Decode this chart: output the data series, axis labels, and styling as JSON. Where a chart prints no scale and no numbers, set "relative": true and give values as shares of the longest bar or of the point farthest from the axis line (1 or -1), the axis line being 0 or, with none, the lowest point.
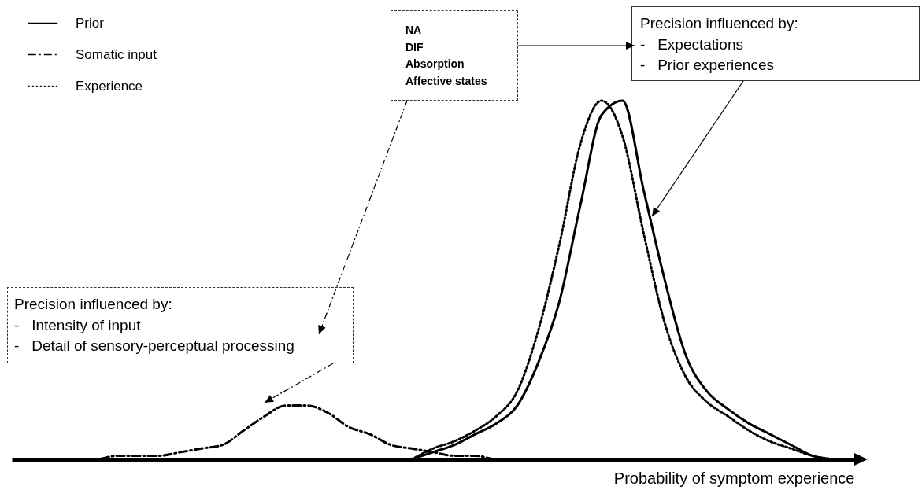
{
  "chart_data": {
    "type": "line",
    "relative": true,
    "xlabel": "Probability of symptom experience",
    "legend": "top left",
    "categories": [
      null,
      null,
      null,
      null,
      null,
      null,
      null,
      null,
      null,
      null,
      null,
      null,
      null,
      null,
      null,
      null,
      null,
      null,
      null,
      null,
      null,
      null,
      null,
      null,
      null,
      null,
      null,
      null,
      null,
      null,
      null,
      null,
      null,
      null,
      null,
      null,
      null,
      null,
      null,
      null,
      null
    ],
    "series": [
      {
        "name": "Prior",
        "color": "#000000",
        "line_style": "solid",
        "values": [
          null,
          null,
          null,
          null,
          null,
          null,
          null,
          null,
          null,
          null,
          null,
          null,
          null,
          null,
          null,
          null,
          null,
          null,
          null,
          0,
          0.02,
          0.04,
          0.07,
          0.1,
          0.15,
          0.27,
          0.44,
          0.71,
          0.96,
          1,
          0.75,
          0.5,
          0.29,
          0.19,
          0.14,
          0.1,
          0.07,
          0.04,
          0.01,
          0,
          null
        ]
      },
      {
        "name": "Somatic input",
        "color": "#000000",
        "line_style": "dashed",
        "values": [
          null,
          null,
          0,
          0,
          0,
          0.01,
          0.01,
          0.01,
          0.02,
          0.03,
          0.04,
          0.08,
          0.12,
          0.15,
          0.15,
          0.13,
          0.09,
          0.07,
          0.04,
          0.03,
          0.02,
          0.01,
          0.01,
          0,
          0,
          null,
          null,
          null,
          null,
          null,
          null,
          null,
          null,
          null,
          null,
          null,
          null,
          null,
          null,
          null,
          null
        ]
      },
      {
        "name": "Experience",
        "color": "#000000",
        "line_style": "dotted",
        "values": [
          null,
          null,
          null,
          null,
          null,
          null,
          null,
          null,
          null,
          null,
          null,
          null,
          null,
          null,
          null,
          null,
          null,
          null,
          null,
          0,
          0.03,
          0.05,
          0.08,
          0.12,
          0.19,
          0.36,
          0.6,
          0.88,
          1,
          0.9,
          0.63,
          0.38,
          0.23,
          0.16,
          0.12,
          0.08,
          0.05,
          0.03,
          0.01,
          0,
          null
        ]
      }
    ],
    "annotations": [
      "NA\nDIF\nAbsorption\nAffective states",
      "Precision influenced by:\n-   Expectations\n-   Prior experiences",
      "Precision influenced by:\n-   Intensity of input\n-   Detail of sensory-perceptual processing"
    ]
  }
}
